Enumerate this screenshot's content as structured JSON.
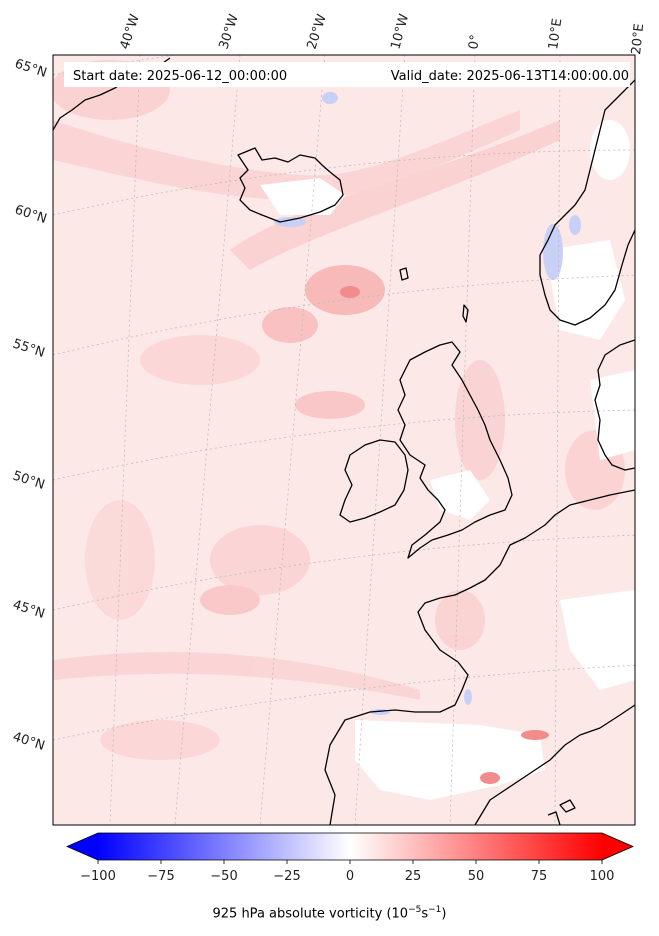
{
  "header": {
    "start_date": "Start date: 2025-06-12_00:00:00",
    "valid_date": "Valid_date: 2025-06-13T14:00:00.00"
  },
  "longitude_labels": [
    "40°W",
    "30°W",
    "20°W",
    "10°W",
    "0°",
    "10°E",
    "20°E"
  ],
  "latitude_labels": [
    "65°N",
    "60°N",
    "55°N",
    "50°N",
    "45°N",
    "40°N"
  ],
  "colorbar": {
    "ticks": [
      "−100",
      "−75",
      "−50",
      "−25",
      "0",
      "25",
      "50",
      "75",
      "100"
    ],
    "values": [
      -100,
      -75,
      -50,
      -25,
      0,
      25,
      50,
      75,
      100
    ],
    "min": -100,
    "max": 100,
    "cmap": [
      "#0000ff",
      "#ffffff",
      "#ff0000"
    ],
    "label_main": "925 hPa absolute vorticity (10",
    "label_exp1": "−5",
    "label_mid": "s",
    "label_exp2": "−1",
    "label_end": ")"
  },
  "colors": {
    "field_base": "#fde8e8",
    "field_mid": "#fbd0d0",
    "field_strong": "#f7a7a7",
    "land_white": "#ffffff",
    "negative_blue": "#c8d0f8",
    "coastline": "#000000",
    "gridline": "#bbbbbb"
  }
}
